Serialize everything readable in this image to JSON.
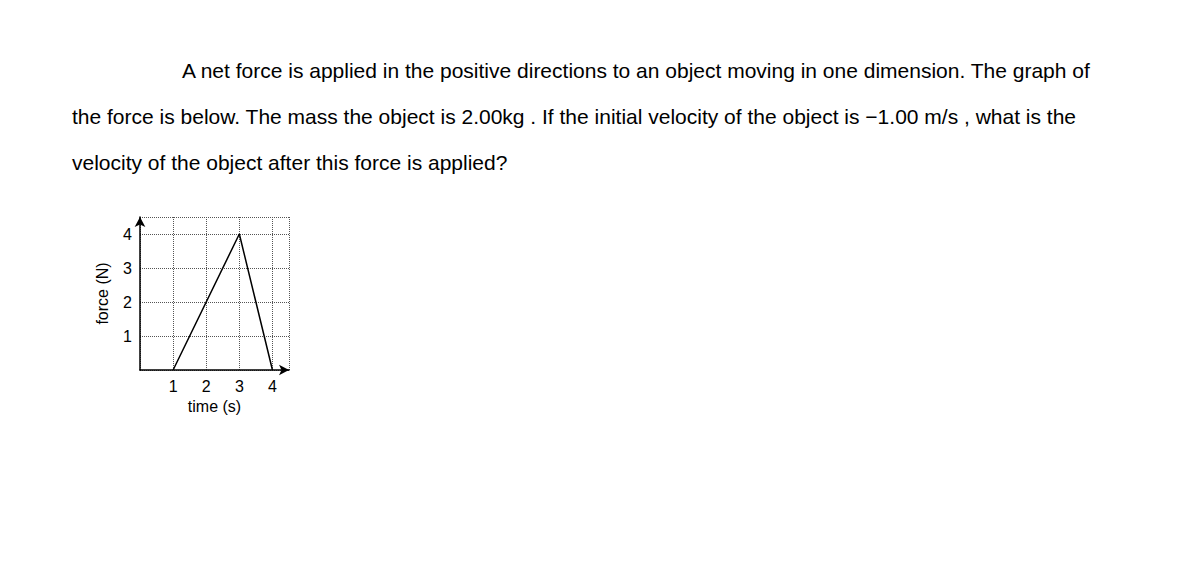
{
  "chart_data": {
    "type": "line",
    "title": "A net force is applied in the positive directions to an object moving in one dimension. The graph of the force is below. The mass the object is 2.00kg . If the initial velocity of the object is −1.00 m/s , what is the velocity of the object after this force is applied?",
    "x_label": "time (s)",
    "y_label": "force (N)",
    "x": [
      1,
      3,
      4
    ],
    "values": [
      0,
      4,
      0
    ],
    "color": "#000000",
    "xlim": [
      0,
      4.5
    ],
    "ylim": [
      0,
      4.5
    ],
    "xticks": [
      1,
      2,
      3,
      4
    ],
    "yticks": [
      1,
      2,
      3,
      4
    ],
    "grid": true
  }
}
